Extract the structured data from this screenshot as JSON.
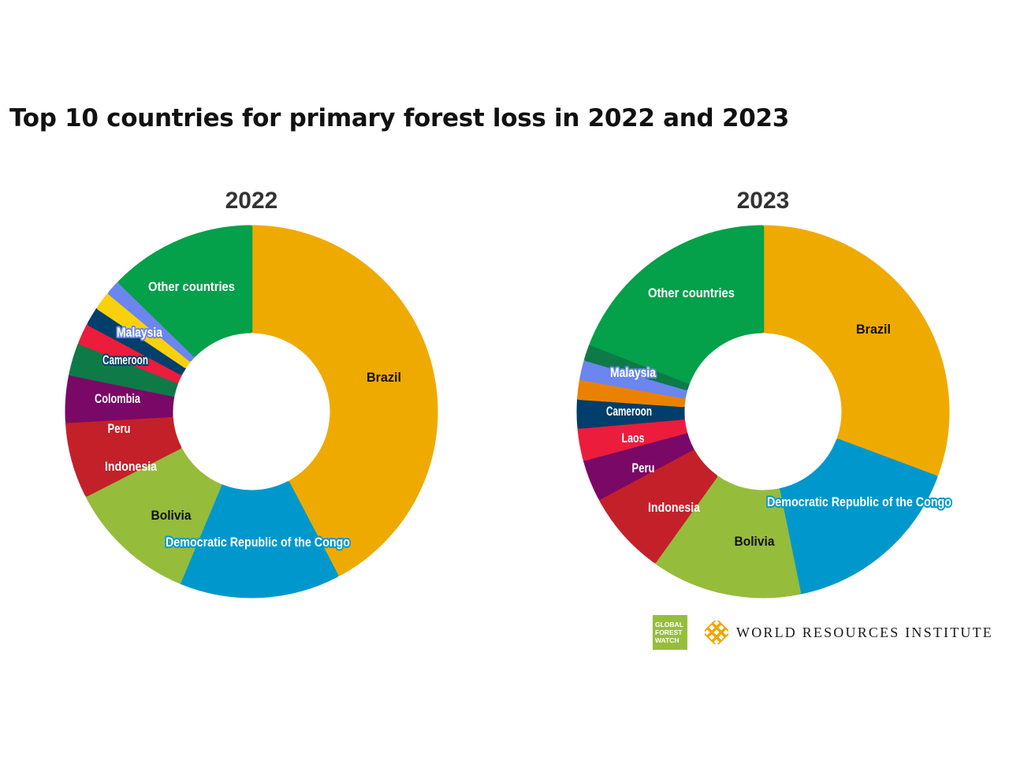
{
  "title": "Top 10 countries for primary forest loss in 2022 and 2023",
  "logos": {
    "gfw": [
      "GLOBAL",
      "FOREST",
      "WATCH"
    ],
    "wri": "WORLD RESOURCES INSTITUTE",
    "gfw_color": "#97bd3d",
    "wri_color": "#f0a500"
  },
  "chart_data": [
    {
      "type": "pie",
      "variant": "donut",
      "title": "2022",
      "unit": "share of primary forest loss (approx. fraction)",
      "slices": [
        {
          "label": "Brazil",
          "value": 0.423,
          "color": "#efaa00",
          "text_color": "#111111",
          "label_style": "plain"
        },
        {
          "label": "Democratic Republic of the Congo",
          "value": 0.14,
          "color": "#0098cc",
          "text_color": "#ffffff",
          "label_style": "outlined"
        },
        {
          "label": "Bolivia",
          "value": 0.112,
          "color": "#95bc3b",
          "text_color": "#111111",
          "label_style": "plain"
        },
        {
          "label": "Indonesia",
          "value": 0.066,
          "color": "#c4202a",
          "text_color": "#ffffff",
          "label_style": "plain"
        },
        {
          "label": "Peru",
          "value": 0.041,
          "color": "#7a0867",
          "text_color": "#ffffff",
          "label_style": "plain"
        },
        {
          "label": "Colombia",
          "value": 0.028,
          "color": "#0e7a48",
          "text_color": "#ffffff",
          "label_style": "plain"
        },
        {
          "label": "",
          "value": 0.018,
          "color": "#ec1c3d",
          "text_color": "#ffffff",
          "label_style": "plain"
        },
        {
          "label": "Cameroon",
          "value": 0.016,
          "color": "#003e6b",
          "text_color": "#ffffff",
          "label_style": "outlined"
        },
        {
          "label": "",
          "value": 0.016,
          "color": "#f8d10c",
          "text_color": "#ffffff",
          "label_style": "plain"
        },
        {
          "label": "Malaysia",
          "value": 0.013,
          "color": "#6b86ee",
          "text_color": "#ffffff",
          "label_style": "outlined"
        },
        {
          "label": "Other countries",
          "value": 0.127,
          "color": "#04a04a",
          "text_color": "#ffffff",
          "label_style": "plain"
        }
      ]
    },
    {
      "type": "pie",
      "variant": "donut",
      "title": "2023",
      "unit": "share of primary forest loss (approx. fraction)",
      "slices": [
        {
          "label": "Brazil",
          "value": 0.307,
          "color": "#efaa00",
          "text_color": "#111111",
          "label_style": "plain"
        },
        {
          "label": "Democratic Republic of the Congo",
          "value": 0.161,
          "color": "#0098cc",
          "text_color": "#ffffff",
          "label_style": "outlined"
        },
        {
          "label": "Bolivia",
          "value": 0.131,
          "color": "#95bc3b",
          "text_color": "#111111",
          "label_style": "plain"
        },
        {
          "label": "Indonesia",
          "value": 0.073,
          "color": "#c4202a",
          "text_color": "#ffffff",
          "label_style": "plain"
        },
        {
          "label": "Peru",
          "value": 0.036,
          "color": "#7a0867",
          "text_color": "#ffffff",
          "label_style": "plain"
        },
        {
          "label": "Laos",
          "value": 0.028,
          "color": "#ec1c3d",
          "text_color": "#ffffff",
          "label_style": "plain"
        },
        {
          "label": "Cameroon",
          "value": 0.025,
          "color": "#003e6b",
          "text_color": "#ffffff",
          "label_style": "plain"
        },
        {
          "label": "",
          "value": 0.017,
          "color": "#ea8200",
          "text_color": "#ffffff",
          "label_style": "plain"
        },
        {
          "label": "Malaysia",
          "value": 0.017,
          "color": "#6b86ee",
          "text_color": "#ffffff",
          "label_style": "outlined"
        },
        {
          "label": "",
          "value": 0.014,
          "color": "#0e7a48",
          "text_color": "#ffffff",
          "label_style": "plain"
        },
        {
          "label": "Other countries",
          "value": 0.191,
          "color": "#04a04a",
          "text_color": "#ffffff",
          "label_style": "plain"
        }
      ]
    }
  ]
}
